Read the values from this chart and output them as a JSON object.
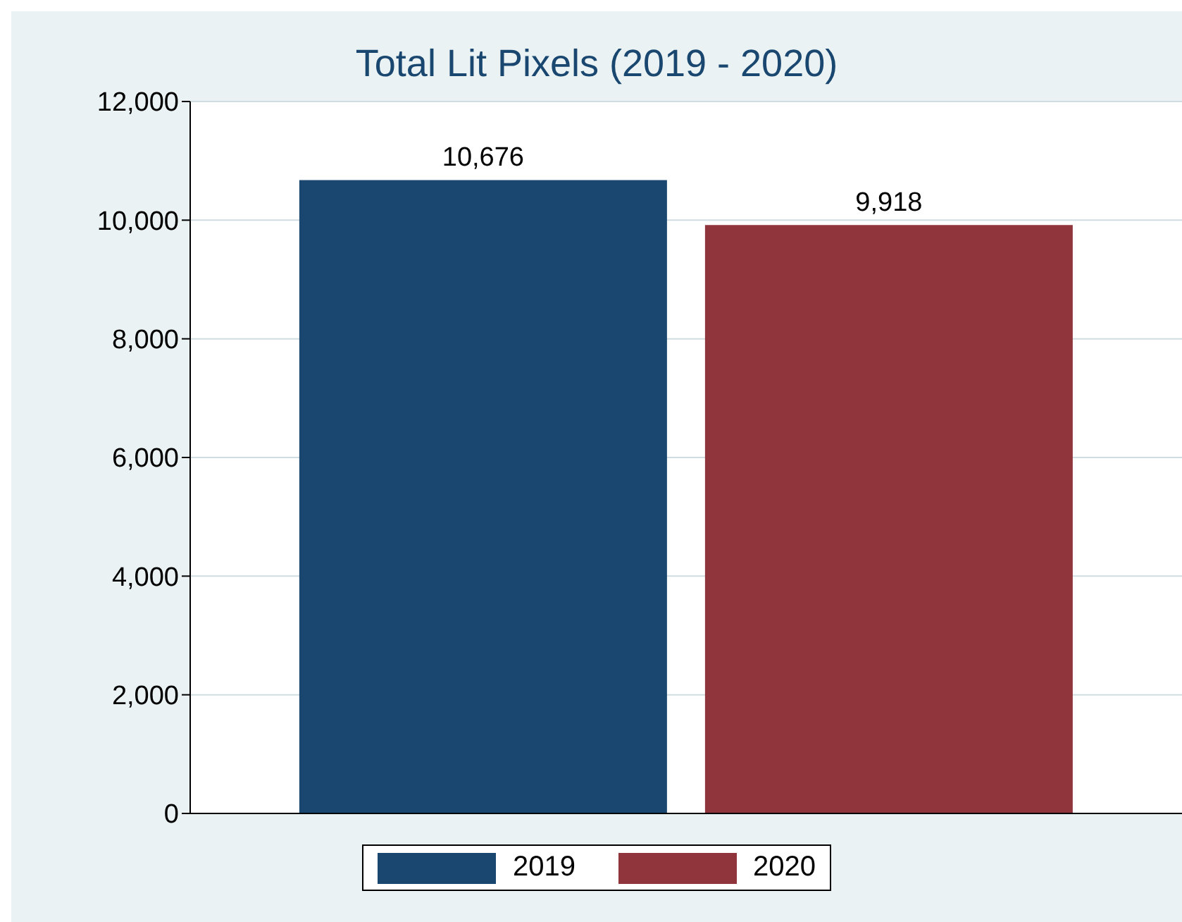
{
  "chart_data": {
    "type": "bar",
    "title": "Total Lit Pixels (2019 - 2020)",
    "categories": [
      null
    ],
    "series": [
      {
        "name": "2019",
        "color": "#1a476f",
        "values": [
          10676
        ],
        "value_labels": [
          "10,676"
        ]
      },
      {
        "name": "2020",
        "color": "#90353b",
        "values": [
          9918
        ],
        "value_labels": [
          "9,918"
        ]
      }
    ],
    "ylim": [
      0,
      12000
    ],
    "yticks": [
      {
        "value": 0,
        "label": "0"
      },
      {
        "value": 2000,
        "label": "2,000"
      },
      {
        "value": 4000,
        "label": "4,000"
      },
      {
        "value": 6000,
        "label": "6,000"
      },
      {
        "value": 8000,
        "label": "8,000"
      },
      {
        "value": 10000,
        "label": "10,000"
      },
      {
        "value": 12000,
        "label": "12,000"
      }
    ],
    "grid": "y",
    "legend": "bottom"
  }
}
